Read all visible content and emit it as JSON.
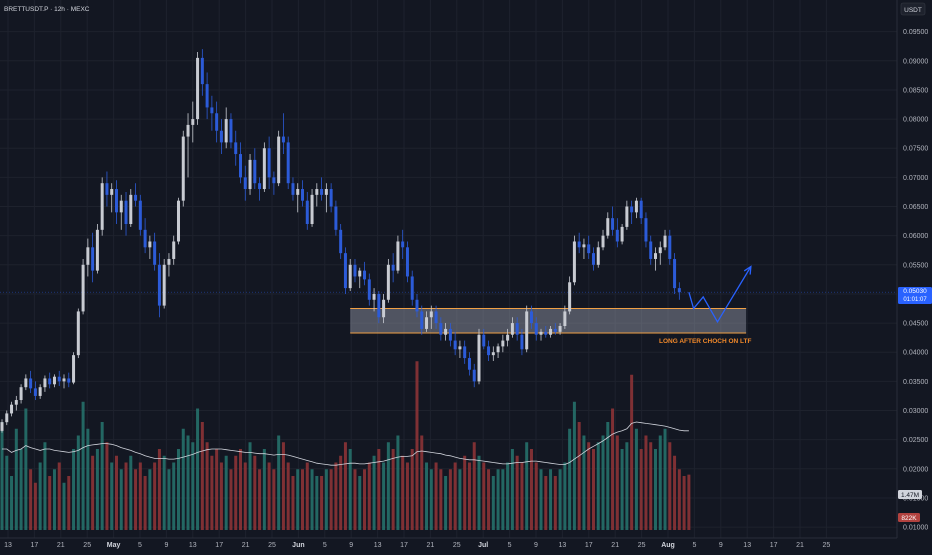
{
  "header": {
    "symbol_title": "BRETTUSDT.P · 12h · MEXC",
    "currency_badge": "USDT"
  },
  "colors": {
    "background": "#131722",
    "grid": "#1e222d",
    "candle_up": "#c8cbd2",
    "candle_down": "#2c5bd8",
    "volume_up": "#26706a",
    "volume_down": "#8c3336",
    "zone_fill": "rgba(155,160,175,0.45)",
    "zone_border": "#f0a045",
    "annotation_text": "#f0882a",
    "projection_line": "#2962ff",
    "price_tag": "#2962ff",
    "vol_sma_line": "#d1d4dc"
  },
  "price_tag": {
    "price": "0.05030",
    "countdown": "01:01:07"
  },
  "volume_tags": {
    "sma": "1.47M",
    "volume": "822K"
  },
  "annotation": {
    "text": "LONG AFTER CHOCH ON LTF"
  },
  "chart_data": {
    "type": "candlestick",
    "title": "BRETTUSDT.P · 12h · MEXC",
    "y_axis": {
      "ticks": [
        "0.09500",
        "0.09000",
        "0.08500",
        "0.08000",
        "0.07500",
        "0.07000",
        "0.06500",
        "0.06000",
        "0.05500",
        "0.05000",
        "0.04500",
        "0.04000",
        "0.03500",
        "0.03000",
        "0.02500",
        "0.02000",
        "0.01500",
        "0.01000"
      ],
      "ylim": [
        0.0095,
        0.097
      ]
    },
    "x_axis": {
      "ticks": [
        {
          "label": "13",
          "bold": false
        },
        {
          "label": "17",
          "bold": false
        },
        {
          "label": "21",
          "bold": false
        },
        {
          "label": "25",
          "bold": false
        },
        {
          "label": "May",
          "bold": true
        },
        {
          "label": "5",
          "bold": false
        },
        {
          "label": "9",
          "bold": false
        },
        {
          "label": "13",
          "bold": false
        },
        {
          "label": "17",
          "bold": false
        },
        {
          "label": "21",
          "bold": false
        },
        {
          "label": "25",
          "bold": false
        },
        {
          "label": "Jun",
          "bold": true
        },
        {
          "label": "5",
          "bold": false
        },
        {
          "label": "9",
          "bold": false
        },
        {
          "label": "13",
          "bold": false
        },
        {
          "label": "17",
          "bold": false
        },
        {
          "label": "21",
          "bold": false
        },
        {
          "label": "25",
          "bold": false
        },
        {
          "label": "Jul",
          "bold": true
        },
        {
          "label": "5",
          "bold": false
        },
        {
          "label": "9",
          "bold": false
        },
        {
          "label": "13",
          "bold": false
        },
        {
          "label": "17",
          "bold": false
        },
        {
          "label": "21",
          "bold": false
        },
        {
          "label": "25",
          "bold": false
        },
        {
          "label": "Aug",
          "bold": true
        },
        {
          "label": "5",
          "bold": false
        },
        {
          "label": "9",
          "bold": false
        },
        {
          "label": "13",
          "bold": false
        },
        {
          "label": "17",
          "bold": false
        },
        {
          "label": "21",
          "bold": false
        },
        {
          "label": "25",
          "bold": false
        }
      ]
    },
    "candles": [
      [
        0.0265,
        0.0285,
        0.0262,
        0.028
      ],
      [
        0.028,
        0.03,
        0.0275,
        0.0295
      ],
      [
        0.0295,
        0.0315,
        0.029,
        0.031
      ],
      [
        0.031,
        0.0325,
        0.03,
        0.0318
      ],
      [
        0.0318,
        0.0345,
        0.0312,
        0.034
      ],
      [
        0.034,
        0.0362,
        0.0335,
        0.0355
      ],
      [
        0.0355,
        0.0368,
        0.033,
        0.0338
      ],
      [
        0.0338,
        0.035,
        0.0318,
        0.0325
      ],
      [
        0.0325,
        0.0345,
        0.032,
        0.034
      ],
      [
        0.034,
        0.036,
        0.0332,
        0.0355
      ],
      [
        0.0355,
        0.0365,
        0.0338,
        0.0345
      ],
      [
        0.0345,
        0.0362,
        0.034,
        0.0358
      ],
      [
        0.0358,
        0.0368,
        0.0342,
        0.035
      ],
      [
        0.035,
        0.0362,
        0.0338,
        0.0355
      ],
      [
        0.0355,
        0.0365,
        0.034,
        0.0348
      ],
      [
        0.0348,
        0.04,
        0.0345,
        0.0395
      ],
      [
        0.0395,
        0.0475,
        0.039,
        0.047
      ],
      [
        0.047,
        0.056,
        0.0465,
        0.055
      ],
      [
        0.055,
        0.0595,
        0.053,
        0.058
      ],
      [
        0.058,
        0.0605,
        0.052,
        0.054
      ],
      [
        0.054,
        0.062,
        0.0535,
        0.061
      ],
      [
        0.061,
        0.07,
        0.06,
        0.069
      ],
      [
        0.069,
        0.071,
        0.065,
        0.067
      ],
      [
        0.067,
        0.069,
        0.064,
        0.068
      ],
      [
        0.068,
        0.0695,
        0.062,
        0.064
      ],
      [
        0.064,
        0.067,
        0.061,
        0.066
      ],
      [
        0.066,
        0.0675,
        0.06,
        0.062
      ],
      [
        0.062,
        0.068,
        0.0615,
        0.067
      ],
      [
        0.067,
        0.069,
        0.065,
        0.066
      ],
      [
        0.066,
        0.067,
        0.06,
        0.061
      ],
      [
        0.061,
        0.063,
        0.057,
        0.058
      ],
      [
        0.058,
        0.06,
        0.056,
        0.059
      ],
      [
        0.059,
        0.0605,
        0.054,
        0.055
      ],
      [
        0.055,
        0.057,
        0.046,
        0.048
      ],
      [
        0.048,
        0.056,
        0.0475,
        0.055
      ],
      [
        0.055,
        0.057,
        0.053,
        0.056
      ],
      [
        0.056,
        0.06,
        0.055,
        0.059
      ],
      [
        0.059,
        0.0665,
        0.0585,
        0.066
      ],
      [
        0.066,
        0.078,
        0.065,
        0.077
      ],
      [
        0.077,
        0.081,
        0.07,
        0.079
      ],
      [
        0.079,
        0.083,
        0.076,
        0.08
      ],
      [
        0.08,
        0.0915,
        0.079,
        0.0905
      ],
      [
        0.0905,
        0.092,
        0.084,
        0.086
      ],
      [
        0.086,
        0.088,
        0.08,
        0.082
      ],
      [
        0.082,
        0.084,
        0.078,
        0.081
      ],
      [
        0.081,
        0.083,
        0.076,
        0.078
      ],
      [
        0.078,
        0.08,
        0.074,
        0.076
      ],
      [
        0.076,
        0.082,
        0.075,
        0.08
      ],
      [
        0.08,
        0.081,
        0.075,
        0.076
      ],
      [
        0.076,
        0.078,
        0.072,
        0.074
      ],
      [
        0.074,
        0.076,
        0.069,
        0.07
      ],
      [
        0.07,
        0.072,
        0.066,
        0.068
      ],
      [
        0.068,
        0.074,
        0.067,
        0.073
      ],
      [
        0.073,
        0.075,
        0.068,
        0.069
      ],
      [
        0.069,
        0.07,
        0.066,
        0.068
      ],
      [
        0.068,
        0.076,
        0.0675,
        0.075
      ],
      [
        0.075,
        0.077,
        0.068,
        0.07
      ],
      [
        0.07,
        0.071,
        0.067,
        0.069
      ],
      [
        0.069,
        0.078,
        0.0685,
        0.077
      ],
      [
        0.077,
        0.081,
        0.074,
        0.076
      ],
      [
        0.076,
        0.077,
        0.068,
        0.069
      ],
      [
        0.069,
        0.07,
        0.066,
        0.067
      ],
      [
        0.067,
        0.069,
        0.064,
        0.068
      ],
      [
        0.068,
        0.0695,
        0.065,
        0.066
      ],
      [
        0.066,
        0.0675,
        0.061,
        0.062
      ],
      [
        0.062,
        0.068,
        0.0615,
        0.067
      ],
      [
        0.067,
        0.069,
        0.065,
        0.068
      ],
      [
        0.068,
        0.07,
        0.066,
        0.067
      ],
      [
        0.067,
        0.069,
        0.064,
        0.068
      ],
      [
        0.068,
        0.069,
        0.064,
        0.065
      ],
      [
        0.065,
        0.066,
        0.06,
        0.061
      ],
      [
        0.061,
        0.062,
        0.056,
        0.057
      ],
      [
        0.057,
        0.058,
        0.05,
        0.051
      ],
      [
        0.051,
        0.056,
        0.0505,
        0.055
      ],
      [
        0.055,
        0.056,
        0.052,
        0.053
      ],
      [
        0.053,
        0.0545,
        0.051,
        0.054
      ],
      [
        0.054,
        0.0555,
        0.0515,
        0.0525
      ],
      [
        0.0525,
        0.0535,
        0.048,
        0.049
      ],
      [
        0.049,
        0.051,
        0.047,
        0.05
      ],
      [
        0.05,
        0.0505,
        0.045,
        0.046
      ],
      [
        0.046,
        0.05,
        0.045,
        0.049
      ],
      [
        0.049,
        0.056,
        0.0485,
        0.055
      ],
      [
        0.055,
        0.057,
        0.052,
        0.054
      ],
      [
        0.054,
        0.06,
        0.0535,
        0.059
      ],
      [
        0.059,
        0.061,
        0.056,
        0.058
      ],
      [
        0.058,
        0.059,
        0.052,
        0.053
      ],
      [
        0.053,
        0.054,
        0.048,
        0.049
      ],
      [
        0.049,
        0.05,
        0.046,
        0.047
      ],
      [
        0.047,
        0.048,
        0.043,
        0.044
      ],
      [
        0.044,
        0.047,
        0.0435,
        0.046
      ],
      [
        0.046,
        0.048,
        0.044,
        0.047
      ],
      [
        0.047,
        0.048,
        0.044,
        0.045
      ],
      [
        0.045,
        0.046,
        0.042,
        0.043
      ],
      [
        0.043,
        0.045,
        0.042,
        0.044
      ],
      [
        0.044,
        0.045,
        0.041,
        0.042
      ],
      [
        0.042,
        0.0435,
        0.0395,
        0.0405
      ],
      [
        0.0405,
        0.042,
        0.039,
        0.041
      ],
      [
        0.041,
        0.042,
        0.038,
        0.039
      ],
      [
        0.039,
        0.04,
        0.036,
        0.037
      ],
      [
        0.037,
        0.038,
        0.034,
        0.035
      ],
      [
        0.035,
        0.044,
        0.0345,
        0.043
      ],
      [
        0.043,
        0.044,
        0.0405,
        0.041
      ],
      [
        0.041,
        0.042,
        0.0385,
        0.0395
      ],
      [
        0.0395,
        0.041,
        0.0385,
        0.04
      ],
      [
        0.04,
        0.0415,
        0.039,
        0.041
      ],
      [
        0.041,
        0.043,
        0.04,
        0.042
      ],
      [
        0.042,
        0.044,
        0.041,
        0.043
      ],
      [
        0.043,
        0.046,
        0.0425,
        0.045
      ],
      [
        0.045,
        0.046,
        0.042,
        0.043
      ],
      [
        0.043,
        0.044,
        0.0395,
        0.0405
      ],
      [
        0.0405,
        0.048,
        0.04,
        0.047
      ],
      [
        0.047,
        0.048,
        0.044,
        0.045
      ],
      [
        0.045,
        0.046,
        0.042,
        0.043
      ],
      [
        0.043,
        0.044,
        0.042,
        0.0435
      ],
      [
        0.0435,
        0.0445,
        0.0425,
        0.043
      ],
      [
        0.043,
        0.0445,
        0.0425,
        0.044
      ],
      [
        0.044,
        0.045,
        0.043,
        0.0435
      ],
      [
        0.0435,
        0.045,
        0.043,
        0.0445
      ],
      [
        0.0445,
        0.048,
        0.044,
        0.047
      ],
      [
        0.047,
        0.053,
        0.0465,
        0.052
      ],
      [
        0.052,
        0.06,
        0.0515,
        0.059
      ],
      [
        0.059,
        0.0605,
        0.057,
        0.058
      ],
      [
        0.058,
        0.0595,
        0.056,
        0.0585
      ],
      [
        0.0585,
        0.06,
        0.056,
        0.057
      ],
      [
        0.057,
        0.058,
        0.054,
        0.055
      ],
      [
        0.055,
        0.059,
        0.0545,
        0.058
      ],
      [
        0.058,
        0.061,
        0.0575,
        0.06
      ],
      [
        0.06,
        0.064,
        0.0595,
        0.063
      ],
      [
        0.063,
        0.065,
        0.06,
        0.061
      ],
      [
        0.061,
        0.063,
        0.058,
        0.059
      ],
      [
        0.059,
        0.062,
        0.0585,
        0.0615
      ],
      [
        0.0615,
        0.066,
        0.061,
        0.065
      ],
      [
        0.065,
        0.066,
        0.062,
        0.064
      ],
      [
        0.064,
        0.0665,
        0.063,
        0.066
      ],
      [
        0.066,
        0.0665,
        0.062,
        0.063
      ],
      [
        0.063,
        0.064,
        0.058,
        0.059
      ],
      [
        0.059,
        0.06,
        0.055,
        0.056
      ],
      [
        0.056,
        0.058,
        0.054,
        0.057
      ],
      [
        0.057,
        0.059,
        0.055,
        0.058
      ],
      [
        0.058,
        0.061,
        0.0575,
        0.06
      ],
      [
        0.06,
        0.061,
        0.055,
        0.056
      ],
      [
        0.056,
        0.057,
        0.05,
        0.051
      ],
      [
        0.051,
        0.052,
        0.049,
        0.0503
      ]
    ],
    "volume_ylim": [
      0,
      2000000
    ],
    "volumes": [
      1600000.0,
      1100000.0,
      800000.0,
      1500000.0,
      1200000.0,
      1800000.0,
      900000.0,
      700000.0,
      1000000.0,
      1300000.0,
      800000.0,
      900000.0,
      1000000.0,
      700000.0,
      800000.0,
      1200000.0,
      1400000.0,
      1900000.0,
      1500000.0,
      1100000.0,
      1200000.0,
      1600000.0,
      1300000.0,
      1000000.0,
      1100000.0,
      900000.0,
      1000000.0,
      1100000.0,
      900000.0,
      1000000.0,
      800000.0,
      900000.0,
      1000000.0,
      1200000.0,
      1100000.0,
      900000.0,
      1000000.0,
      1200000.0,
      1500000.0,
      1400000.0,
      1300000.0,
      1800000.0,
      1600000.0,
      1300000.0,
      1100000.0,
      1200000.0,
      1000000.0,
      1100000.0,
      900000.0,
      1100000.0,
      1200000.0,
      1000000.0,
      1300000.0,
      1100000.0,
      900000.0,
      1200000.0,
      1000000.0,
      900000.0,
      1400000.0,
      1300000.0,
      1000000.0,
      800000.0,
      900000.0,
      900000.0,
      1000000.0,
      900000.0,
      800000.0,
      800000.0,
      900000.0,
      900000.0,
      1000000.0,
      1100000.0,
      1300000.0,
      1200000.0,
      900000.0,
      800000.0,
      900000.0,
      1000000.0,
      1100000.0,
      1200000.0,
      1000000.0,
      1300000.0,
      1200000.0,
      1400000.0,
      1100000.0,
      1000000.0,
      1200000.0,
      2500000.0,
      1400000.0,
      1000000.0,
      900000.0,
      1000000.0,
      900000.0,
      800000.0,
      900000.0,
      1000000.0,
      900000.0,
      1100000.0,
      1000000.0,
      1300000.0,
      1100000.0,
      1000000.0,
      900000.0,
      800000.0,
      900000.0,
      900000.0,
      1000000.0,
      1200000.0,
      1100000.0,
      1000000.0,
      1300000.0,
      1200000.0,
      1000000.0,
      900000.0,
      800000.0,
      900000.0,
      800000.0,
      900000.0,
      1000000.0,
      1500000.0,
      1900000.0,
      1600000.0,
      1400000.0,
      1300000.0,
      1200000.0,
      1300000.0,
      1400000.0,
      1600000.0,
      1800000.0,
      1400000.0,
      1200000.0,
      1300000.0,
      2300000.0,
      1500000.0,
      1200000.0,
      1400000.0,
      1300000.0,
      1200000.0,
      1400000.0,
      1500000.0,
      1300000.0,
      1100000.0,
      900000.0,
      800000.0,
      820000.0
    ],
    "volume_sma": [
      1200000.0,
      1200000.0,
      1150000.0,
      1180000.0,
      1200000.0,
      1250000.0,
      1220000.0,
      1200000.0,
      1180000.0,
      1200000.0,
      1200000.0,
      1180000.0,
      1170000.0,
      1160000.0,
      1150000.0,
      1160000.0,
      1180000.0,
      1220000.0,
      1250000.0,
      1260000.0,
      1270000.0,
      1280000.0,
      1280000.0,
      1270000.0,
      1250000.0,
      1220000.0,
      1200000.0,
      1180000.0,
      1150000.0,
      1130000.0,
      1100000.0,
      1080000.0,
      1060000.0,
      1060000.0,
      1060000.0,
      1050000.0,
      1050000.0,
      1060000.0,
      1080000.0,
      1100000.0,
      1120000.0,
      1150000.0,
      1170000.0,
      1190000.0,
      1200000.0,
      1200000.0,
      1200000.0,
      1190000.0,
      1180000.0,
      1170000.0,
      1160000.0,
      1150000.0,
      1150000.0,
      1140000.0,
      1130000.0,
      1130000.0,
      1120000.0,
      1110000.0,
      1120000.0,
      1120000.0,
      1110000.0,
      1090000.0,
      1070000.0,
      1050000.0,
      1030000.0,
      1010000.0,
      990000.0,
      980000.0,
      970000.0,
      960000.0,
      960000.0,
      970000.0,
      980000.0,
      990000.0,
      990000.0,
      980000.0,
      980000.0,
      990000.0,
      1000000.0,
      1010000.0,
      1020000.0,
      1040000.0,
      1060000.0,
      1080000.0,
      1090000.0,
      1090000.0,
      1100000.0,
      1160000.0,
      1170000.0,
      1160000.0,
      1150000.0,
      1140000.0,
      1130000.0,
      1110000.0,
      1100000.0,
      1080000.0,
      1060000.0,
      1050000.0,
      1040000.0,
      1040000.0,
      1030000.0,
      1020000.0,
      1010000.0,
      1000000.0,
      990000.0,
      980000.0,
      980000.0,
      990000.0,
      1000000.0,
      1000000.0,
      1010000.0,
      1020000.0,
      1020000.0,
      1010000.0,
      1000000.0,
      990000.0,
      980000.0,
      970000.0,
      970000.0,
      1000000.0,
      1050000.0,
      1100000.0,
      1150000.0,
      1200000.0,
      1240000.0,
      1280000.0,
      1320000.0,
      1370000.0,
      1420000.0,
      1450000.0,
      1470000.0,
      1500000.0,
      1580000.0,
      1600000.0,
      1590000.0,
      1580000.0,
      1570000.0,
      1560000.0,
      1550000.0,
      1540000.0,
      1520000.0,
      1500000.0,
      1480000.0,
      1470000.0,
      1470000.0
    ],
    "zone": {
      "price_top": 0.0475,
      "price_bottom": 0.0433
    },
    "projection_path": [
      {
        "bar": 144,
        "price": 0.0503
      },
      {
        "bar": 145,
        "price": 0.0475
      },
      {
        "bar": 147,
        "price": 0.0495
      },
      {
        "bar": 150,
        "price": 0.0452
      },
      {
        "bar": 157,
        "price": 0.0547
      }
    ]
  }
}
